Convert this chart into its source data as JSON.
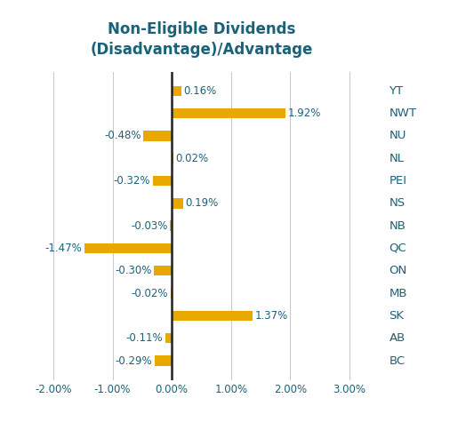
{
  "title": "Non-Eligible Dividends\n(Disadvantage)/Advantage",
  "categories": [
    "YT",
    "NWT",
    "NU",
    "NL",
    "PEI",
    "NS",
    "NB",
    "QC",
    "ON",
    "MB",
    "SK",
    "AB",
    "BC"
  ],
  "values": [
    0.16,
    1.92,
    -0.48,
    0.02,
    -0.32,
    0.19,
    -0.03,
    -1.47,
    -0.3,
    -0.02,
    1.37,
    -0.11,
    -0.29
  ],
  "bar_color": "#E8A800",
  "label_color": "#1B6278",
  "title_color": "#1B6278",
  "tick_label_color": "#1B6278",
  "background_color": "#FFFFFF",
  "xlim": [
    -2.5,
    3.5
  ],
  "xticks": [
    -2.0,
    -1.0,
    0.0,
    1.0,
    2.0,
    3.0
  ],
  "bar_height": 0.45,
  "label_fontsize": 8.5,
  "tick_fontsize": 8.5,
  "province_fontsize": 9.5,
  "title_fontsize": 12
}
